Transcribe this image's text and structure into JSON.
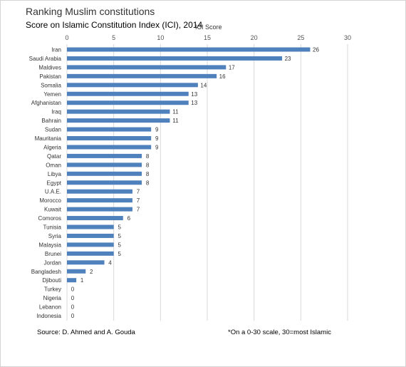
{
  "chart_data": {
    "type": "bar",
    "orientation": "horizontal",
    "title": "Ranking Muslim constitutions",
    "subtitle": "Score on Islamic Constitution Index (ICI), 2014",
    "xlabel": "ICI Score",
    "ylabel": "",
    "xlim": [
      0,
      30
    ],
    "xticks": [
      0,
      5,
      10,
      15,
      20,
      25,
      30
    ],
    "x_axis_position": "top",
    "grid": true,
    "bar_color": "#4f81bd",
    "categories": [
      "Iran",
      "Saudi Arabia",
      "Maldives",
      "Pakistan",
      "Somalia",
      "Yemen",
      "Afghanistan",
      "Iraq",
      "Bahrain",
      "Sudan",
      "Mauritania",
      "Algeria",
      "Qatar",
      "Oman",
      "Libya",
      "Egypt",
      "U.A.E.",
      "Morocco",
      "Kuwait",
      "Comoros",
      "Tunisia",
      "Syria",
      "Malaysia",
      "Brunei",
      "Jordan",
      "Bangladesh",
      "Djibouti",
      "Turkey",
      "Nigeria",
      "Lebanon",
      "Indonesia"
    ],
    "values": [
      26,
      23,
      17,
      16,
      14,
      13,
      13,
      11,
      11,
      9,
      9,
      9,
      8,
      8,
      8,
      8,
      7,
      7,
      7,
      6,
      5,
      5,
      5,
      5,
      4,
      2,
      1,
      0,
      0,
      0,
      0
    ]
  },
  "footer": {
    "source": "Source: D. Ahmed and A. Gouda",
    "note": "*On a 0-30 scale, 30=most Islamic"
  }
}
